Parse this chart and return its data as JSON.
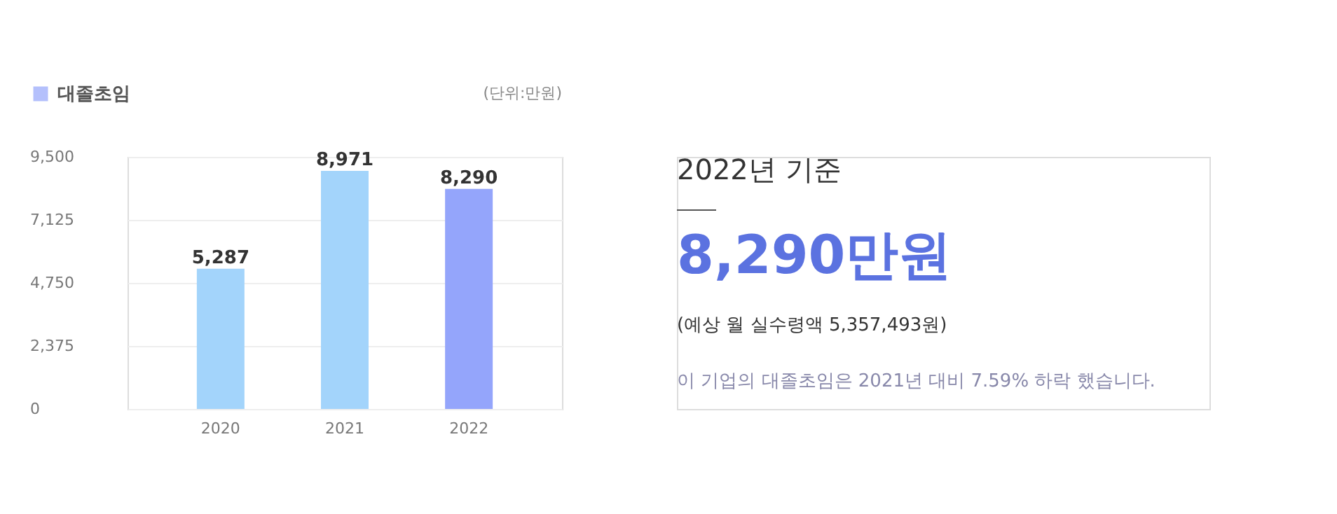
{
  "chart_data": {
    "type": "bar",
    "categories": [
      "2020",
      "2021",
      "2022"
    ],
    "series": [
      {
        "name": "대졸초임",
        "color": "#94a5fb",
        "colors": [
          "#a3d4fb",
          "#a3d4fb",
          "#94a5fb"
        ],
        "values": [
          5287,
          8971,
          8290
        ],
        "value_labels": [
          "5,287",
          "8,971",
          "8,290"
        ]
      }
    ],
    "ylim": [
      0,
      9500
    ],
    "yticks": [
      0,
      {
        "value": 2375,
        "label": "2,375"
      },
      {
        "value": 4750,
        "label": "4,750"
      },
      {
        "value": 7125,
        "label": "7,125"
      },
      {
        "value": 9500,
        "label": "9,500"
      }
    ],
    "grid": "y",
    "legend": "top left",
    "annotations": [
      "(단위:만원)",
      "2022년 기준",
      "8,290만원",
      "(예상 월 실수령액 5,357,493원)",
      "이 기업의 대졸초임은 2021년 대비 7.59% 하락 했습니다."
    ]
  }
}
